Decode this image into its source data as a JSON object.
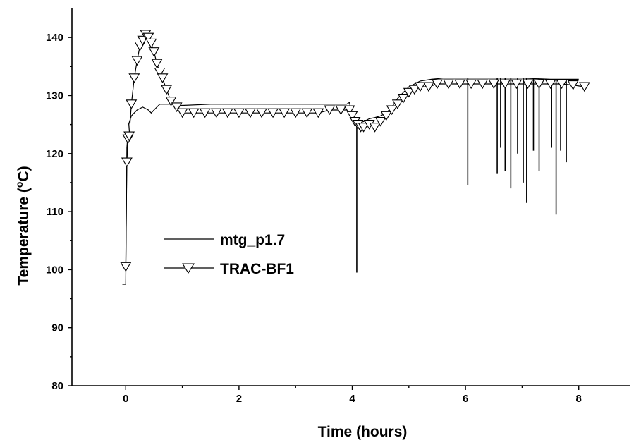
{
  "chart_data": {
    "type": "line",
    "title": "",
    "xlabel": "Time (hours)",
    "ylabel": "Temperature (°C)",
    "ylabel_parts": {
      "before": "Temperature (",
      "sup": "o",
      "after": "C)"
    },
    "xlim": [
      -0.95,
      8.9
    ],
    "ylim": [
      80,
      145
    ],
    "xticks": [
      0,
      2,
      4,
      6,
      8
    ],
    "yticks": [
      80,
      90,
      100,
      110,
      120,
      130,
      140
    ],
    "grid": false,
    "legend_position": "center-left",
    "series": [
      {
        "name": "mtg_p1.7",
        "marker": "none",
        "x": [
          -0.06,
          0.0,
          0.02,
          0.05,
          0.1,
          0.15,
          0.2,
          0.3,
          0.4,
          0.45,
          0.5,
          0.6,
          0.8,
          1.0,
          1.5,
          2.0,
          2.5,
          3.0,
          3.5,
          3.9,
          3.95,
          4.0,
          4.05,
          4.1,
          4.2,
          4.3,
          4.4,
          4.5,
          4.6,
          4.7,
          4.8,
          4.9,
          5.0,
          5.1,
          5.2,
          5.4,
          5.6,
          6.0,
          6.5,
          7.0,
          7.5,
          8.0
        ],
        "y": [
          97.5,
          97.5,
          121,
          125,
          126.5,
          127,
          127.5,
          128,
          127.5,
          127,
          127.5,
          128.5,
          128.5,
          128.3,
          128.5,
          128.5,
          128.5,
          128.5,
          128.5,
          128.5,
          128.8,
          126.5,
          125.5,
          125.2,
          125.5,
          126,
          126.2,
          126.5,
          127,
          128,
          129.5,
          130.5,
          131.5,
          132,
          132.5,
          132.8,
          133,
          133,
          133,
          133,
          132.8,
          132.8
        ],
        "spikes": [
          {
            "x": 4.08,
            "y": 99.5
          },
          {
            "x": 6.04,
            "y": 114.5
          },
          {
            "x": 6.56,
            "y": 116.5
          },
          {
            "x": 6.62,
            "y": 121
          },
          {
            "x": 6.7,
            "y": 117
          },
          {
            "x": 6.8,
            "y": 114
          },
          {
            "x": 6.92,
            "y": 120
          },
          {
            "x": 7.02,
            "y": 115
          },
          {
            "x": 7.08,
            "y": 111.5
          },
          {
            "x": 7.2,
            "y": 120.5
          },
          {
            "x": 7.3,
            "y": 117
          },
          {
            "x": 7.52,
            "y": 121
          },
          {
            "x": 7.6,
            "y": 109.5
          },
          {
            "x": 7.68,
            "y": 120.5
          },
          {
            "x": 7.78,
            "y": 118.5
          }
        ]
      },
      {
        "name": "TRAC-BF1",
        "marker": "triangle-down",
        "x": [
          0.0,
          0.02,
          0.04,
          0.06,
          0.1,
          0.15,
          0.2,
          0.25,
          0.3,
          0.35,
          0.4,
          0.45,
          0.5,
          0.55,
          0.6,
          0.65,
          0.72,
          0.8,
          0.9,
          1.0,
          1.2,
          1.4,
          1.6,
          1.8,
          2.0,
          2.2,
          2.4,
          2.6,
          2.8,
          3.0,
          3.2,
          3.4,
          3.6,
          3.8,
          3.95,
          4.0,
          4.05,
          4.1,
          4.15,
          4.2,
          4.3,
          4.4,
          4.5,
          4.6,
          4.7,
          4.8,
          4.9,
          5.0,
          5.1,
          5.2,
          5.35,
          5.5,
          5.7,
          5.9,
          6.1,
          6.3,
          6.5,
          6.7,
          6.9,
          7.1,
          7.3,
          7.5,
          7.7,
          7.9,
          8.1
        ],
        "y": [
          100.5,
          118.5,
          122.5,
          123,
          128.5,
          133,
          136,
          138.5,
          139.5,
          140.5,
          140,
          139,
          137.5,
          135.5,
          134,
          133,
          131,
          129,
          128,
          127,
          127,
          127,
          127,
          127,
          127,
          127,
          127,
          127,
          127,
          127,
          127,
          127,
          127.5,
          127.5,
          127.5,
          126.5,
          125.5,
          125,
          124.5,
          124.5,
          125,
          124.5,
          125.5,
          126.5,
          127.5,
          128.5,
          129.5,
          130.5,
          131,
          131.5,
          131.5,
          132,
          132,
          132,
          132,
          132,
          132,
          132,
          132,
          132,
          132,
          132,
          132,
          131.8,
          131.5
        ]
      }
    ]
  }
}
